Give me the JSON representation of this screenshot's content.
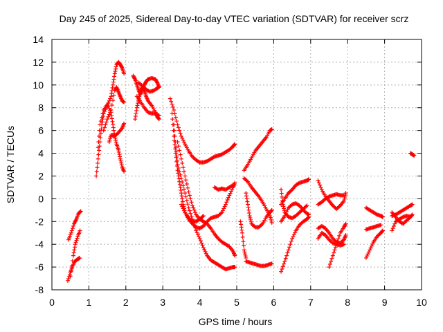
{
  "chart_data": {
    "type": "scatter",
    "title": "Day 245 of 2025, Sidereal Day-to-day VTEC variation (SDTVAR) for receiver scrz",
    "xlabel": "GPS time / hours",
    "ylabel": "SDTVAR / TECUs",
    "xlim": [
      0,
      10
    ],
    "ylim": [
      -8,
      14
    ],
    "xticks": [
      "0",
      "1",
      "2",
      "3",
      "4",
      "5",
      "6",
      "7",
      "8",
      "9",
      "10"
    ],
    "yticks": [
      "-8",
      "-6",
      "-4",
      "-2",
      "0",
      "2",
      "4",
      "6",
      "8",
      "10",
      "12",
      "14"
    ],
    "grid": true,
    "marker": "+",
    "color": "#ff0000",
    "segments": [
      [
        [
          0.43,
          -7.2
        ],
        [
          0.5,
          -6.5
        ],
        [
          0.55,
          -6.0
        ],
        [
          0.62,
          -5.5
        ],
        [
          0.7,
          -5.3
        ],
        [
          0.75,
          -5.2
        ]
      ],
      [
        [
          0.45,
          -3.6
        ],
        [
          0.52,
          -3.0
        ],
        [
          0.6,
          -2.2
        ],
        [
          0.66,
          -1.8
        ],
        [
          0.72,
          -1.3
        ],
        [
          0.78,
          -1.1
        ]
      ],
      [
        [
          0.5,
          -6.8
        ],
        [
          0.58,
          -5.0
        ],
        [
          0.63,
          -4.0
        ],
        [
          0.7,
          -3.3
        ],
        [
          0.76,
          -2.8
        ]
      ],
      [
        [
          1.2,
          2.0
        ],
        [
          1.25,
          3.5
        ],
        [
          1.3,
          5.0
        ],
        [
          1.35,
          6.5
        ],
        [
          1.4,
          7.5
        ],
        [
          1.5,
          8.2
        ],
        [
          1.6,
          9.0
        ],
        [
          1.65,
          10.0
        ],
        [
          1.7,
          11.0
        ],
        [
          1.75,
          11.8
        ],
        [
          1.8,
          12.0
        ],
        [
          1.85,
          11.8
        ],
        [
          1.9,
          11.5
        ],
        [
          1.95,
          11.0
        ]
      ],
      [
        [
          1.25,
          4.5
        ],
        [
          1.3,
          6.5
        ],
        [
          1.4,
          7.8
        ],
        [
          1.5,
          8.3
        ],
        [
          1.6,
          7.6
        ],
        [
          1.65,
          6.5
        ],
        [
          1.7,
          5.5
        ],
        [
          1.75,
          4.8
        ],
        [
          1.8,
          4.3
        ],
        [
          1.85,
          3.5
        ],
        [
          1.9,
          2.8
        ],
        [
          1.95,
          2.4
        ]
      ],
      [
        [
          1.4,
          6.0
        ],
        [
          1.5,
          7.0
        ],
        [
          1.6,
          7.8
        ],
        [
          1.7,
          9.5
        ],
        [
          1.75,
          9.8
        ],
        [
          1.8,
          9.4
        ],
        [
          1.85,
          9.0
        ],
        [
          1.9,
          8.6
        ],
        [
          1.95,
          8.5
        ]
      ],
      [
        [
          1.55,
          5.0
        ],
        [
          1.6,
          5.6
        ],
        [
          1.7,
          5.5
        ],
        [
          1.8,
          5.8
        ],
        [
          1.9,
          6.2
        ],
        [
          1.95,
          6.6
        ]
      ],
      [
        [
          2.2,
          10.8
        ],
        [
          2.25,
          10.5
        ],
        [
          2.3,
          10.0
        ],
        [
          2.35,
          9.5
        ],
        [
          2.4,
          9.2
        ],
        [
          2.45,
          9.6
        ],
        [
          2.5,
          10.0
        ],
        [
          2.55,
          10.3
        ],
        [
          2.6,
          10.5
        ],
        [
          2.7,
          10.6
        ],
        [
          2.8,
          10.5
        ],
        [
          2.85,
          10.2
        ],
        [
          2.9,
          9.8
        ]
      ],
      [
        [
          2.25,
          7.0
        ],
        [
          2.3,
          8.0
        ],
        [
          2.35,
          8.8
        ],
        [
          2.4,
          9.5
        ],
        [
          2.45,
          9.8
        ],
        [
          2.5,
          9.5
        ],
        [
          2.55,
          9.0
        ],
        [
          2.6,
          8.6
        ],
        [
          2.7,
          8.2
        ],
        [
          2.8,
          7.6
        ],
        [
          2.85,
          7.2
        ],
        [
          2.9,
          7.0
        ]
      ],
      [
        [
          2.3,
          9.0
        ],
        [
          2.4,
          8.5
        ],
        [
          2.5,
          8.0
        ],
        [
          2.6,
          7.6
        ],
        [
          2.7,
          7.5
        ],
        [
          2.8,
          7.5
        ],
        [
          2.9,
          7.3
        ]
      ],
      [
        [
          2.35,
          10.2
        ],
        [
          2.45,
          9.9
        ],
        [
          2.55,
          9.6
        ],
        [
          2.65,
          9.4
        ],
        [
          2.75,
          9.5
        ],
        [
          2.85,
          9.7
        ],
        [
          2.9,
          9.9
        ]
      ],
      [
        [
          3.2,
          8.8
        ],
        [
          3.3,
          7.8
        ],
        [
          3.4,
          6.5
        ],
        [
          3.5,
          5.5
        ],
        [
          3.6,
          4.8
        ],
        [
          3.7,
          4.2
        ],
        [
          3.8,
          3.7
        ],
        [
          3.9,
          3.4
        ],
        [
          4.0,
          3.2
        ],
        [
          4.1,
          3.2
        ],
        [
          4.2,
          3.3
        ],
        [
          4.3,
          3.5
        ],
        [
          4.4,
          3.7
        ],
        [
          4.5,
          3.8
        ],
        [
          4.6,
          3.9
        ],
        [
          4.7,
          4.1
        ],
        [
          4.8,
          4.3
        ],
        [
          4.9,
          4.6
        ],
        [
          4.95,
          4.8
        ]
      ],
      [
        [
          3.25,
          7.5
        ],
        [
          3.3,
          5.5
        ],
        [
          3.35,
          4.0
        ],
        [
          3.4,
          2.5
        ],
        [
          3.45,
          1.5
        ],
        [
          3.5,
          0.5
        ],
        [
          3.55,
          -0.5
        ],
        [
          3.6,
          -1.2
        ],
        [
          3.7,
          -1.8
        ],
        [
          3.8,
          -2.2
        ],
        [
          3.9,
          -2.5
        ],
        [
          4.0,
          -2.6
        ],
        [
          4.1,
          -2.4
        ],
        [
          4.2,
          -2.0
        ],
        [
          4.3,
          -1.7
        ],
        [
          4.4,
          -1.6
        ],
        [
          4.5,
          -1.5
        ],
        [
          4.6,
          -1.2
        ],
        [
          4.7,
          -0.5
        ],
        [
          4.8,
          0.3
        ],
        [
          4.9,
          1.0
        ],
        [
          4.95,
          1.4
        ]
      ],
      [
        [
          3.3,
          6.5
        ],
        [
          3.35,
          4.5
        ],
        [
          3.4,
          3.0
        ],
        [
          3.5,
          1.8
        ],
        [
          3.6,
          0.5
        ],
        [
          3.7,
          -0.8
        ],
        [
          3.8,
          -1.8
        ],
        [
          3.9,
          -2.8
        ],
        [
          4.0,
          -3.5
        ],
        [
          4.1,
          -4.3
        ],
        [
          4.2,
          -5.0
        ],
        [
          4.3,
          -5.4
        ],
        [
          4.4,
          -5.6
        ],
        [
          4.5,
          -5.8
        ],
        [
          4.6,
          -6.0
        ],
        [
          4.7,
          -6.2
        ],
        [
          4.8,
          -6.1
        ],
        [
          4.9,
          -6.0
        ],
        [
          4.95,
          -6.0
        ]
      ],
      [
        [
          3.4,
          5.0
        ],
        [
          3.5,
          3.5
        ],
        [
          3.6,
          2.0
        ],
        [
          3.7,
          0.6
        ],
        [
          3.8,
          -0.6
        ],
        [
          3.9,
          -1.4
        ],
        [
          4.0,
          -1.8
        ],
        [
          4.1,
          -2.0
        ],
        [
          4.2,
          -2.2
        ],
        [
          4.3,
          -2.6
        ],
        [
          4.4,
          -3.1
        ],
        [
          4.5,
          -3.5
        ],
        [
          4.6,
          -3.8
        ],
        [
          4.7,
          -4.0
        ],
        [
          4.8,
          -4.2
        ],
        [
          4.9,
          -4.6
        ],
        [
          4.95,
          -5.0
        ]
      ],
      [
        [
          3.5,
          -0.5
        ],
        [
          3.6,
          -1.2
        ],
        [
          3.7,
          -1.7
        ],
        [
          3.8,
          -2.0
        ],
        [
          3.9,
          -2.0
        ],
        [
          4.0,
          -1.8
        ],
        [
          4.1,
          -1.5
        ]
      ],
      [
        [
          4.4,
          1.0
        ],
        [
          4.5,
          0.8
        ],
        [
          4.6,
          0.9
        ],
        [
          4.7,
          0.8
        ],
        [
          4.8,
          1.0
        ],
        [
          4.9,
          1.2
        ]
      ],
      [
        [
          5.2,
          2.5
        ],
        [
          5.3,
          3.0
        ],
        [
          5.4,
          3.6
        ],
        [
          5.5,
          4.2
        ],
        [
          5.6,
          4.6
        ],
        [
          5.7,
          5.0
        ],
        [
          5.8,
          5.4
        ],
        [
          5.9,
          6.0
        ],
        [
          5.95,
          6.1
        ]
      ],
      [
        [
          5.2,
          1.8
        ],
        [
          5.3,
          1.5
        ],
        [
          5.4,
          1.0
        ],
        [
          5.5,
          0.6
        ],
        [
          5.6,
          0.2
        ],
        [
          5.7,
          -0.3
        ],
        [
          5.8,
          -0.9
        ],
        [
          5.9,
          -1.5
        ],
        [
          5.95,
          -2.1
        ]
      ],
      [
        [
          5.25,
          0.5
        ],
        [
          5.3,
          -0.5
        ],
        [
          5.35,
          -1.5
        ],
        [
          5.4,
          -2.2
        ],
        [
          5.5,
          -2.5
        ],
        [
          5.6,
          -2.5
        ],
        [
          5.7,
          -2.2
        ],
        [
          5.8,
          -1.6
        ],
        [
          5.9,
          -1.2
        ],
        [
          5.95,
          -1.0
        ]
      ],
      [
        [
          5.25,
          -5.5
        ],
        [
          5.35,
          -5.6
        ],
        [
          5.45,
          -5.7
        ],
        [
          5.55,
          -5.8
        ],
        [
          5.65,
          -5.9
        ],
        [
          5.75,
          -5.9
        ],
        [
          5.85,
          -5.8
        ],
        [
          5.95,
          -5.7
        ]
      ],
      [
        [
          5.1,
          -2.0
        ],
        [
          5.15,
          -3.0
        ],
        [
          5.2,
          -4.5
        ],
        [
          5.25,
          -5.2
        ]
      ],
      [
        [
          6.2,
          -6.4
        ],
        [
          6.3,
          -5.5
        ],
        [
          6.4,
          -4.5
        ],
        [
          6.5,
          -3.5
        ],
        [
          6.6,
          -2.8
        ],
        [
          6.7,
          -2.3
        ],
        [
          6.8,
          -2.0
        ],
        [
          6.9,
          -1.8
        ],
        [
          6.95,
          -1.6
        ]
      ],
      [
        [
          6.2,
          -0.5
        ],
        [
          6.3,
          0.0
        ],
        [
          6.4,
          0.5
        ],
        [
          6.5,
          0.8
        ],
        [
          6.6,
          1.2
        ],
        [
          6.7,
          1.4
        ],
        [
          6.8,
          1.5
        ],
        [
          6.9,
          1.6
        ],
        [
          6.95,
          1.7
        ]
      ],
      [
        [
          6.2,
          -2.0
        ],
        [
          6.3,
          -1.5
        ],
        [
          6.4,
          -0.8
        ],
        [
          6.5,
          -0.5
        ],
        [
          6.6,
          -0.4
        ],
        [
          6.7,
          -0.6
        ],
        [
          6.8,
          -1.0
        ],
        [
          6.9,
          -1.3
        ],
        [
          6.95,
          -1.4
        ]
      ],
      [
        [
          6.2,
          0.8
        ],
        [
          6.25,
          -0.5
        ],
        [
          6.3,
          -1.2
        ],
        [
          6.4,
          -1.6
        ],
        [
          6.5,
          -1.7
        ],
        [
          6.6,
          -1.5
        ],
        [
          6.7,
          -1.2
        ],
        [
          6.8,
          -0.9
        ],
        [
          6.9,
          -0.6
        ]
      ],
      [
        [
          7.2,
          1.6
        ],
        [
          7.3,
          0.8
        ],
        [
          7.4,
          0.2
        ],
        [
          7.5,
          -0.2
        ],
        [
          7.6,
          -0.6
        ],
        [
          7.7,
          -0.9
        ],
        [
          7.8,
          -0.6
        ],
        [
          7.9,
          -0.2
        ],
        [
          7.95,
          0.5
        ]
      ],
      [
        [
          7.2,
          -0.5
        ],
        [
          7.3,
          -0.3
        ],
        [
          7.4,
          0.0
        ],
        [
          7.5,
          0.2
        ],
        [
          7.6,
          0.3
        ],
        [
          7.7,
          0.4
        ],
        [
          7.8,
          0.3
        ],
        [
          7.9,
          0.3
        ]
      ],
      [
        [
          7.2,
          -2.6
        ],
        [
          7.3,
          -2.4
        ],
        [
          7.4,
          -2.6
        ],
        [
          7.5,
          -3.0
        ],
        [
          7.6,
          -3.5
        ],
        [
          7.7,
          -3.8
        ],
        [
          7.8,
          -3.9
        ],
        [
          7.9,
          -3.6
        ],
        [
          7.95,
          -3.2
        ]
      ],
      [
        [
          7.2,
          -3.5
        ],
        [
          7.3,
          -3.0
        ],
        [
          7.4,
          -3.2
        ],
        [
          7.5,
          -3.6
        ],
        [
          7.6,
          -3.9
        ],
        [
          7.7,
          -4.0
        ],
        [
          7.8,
          -4.1
        ],
        [
          7.9,
          -4.0
        ]
      ],
      [
        [
          7.5,
          -6.0
        ],
        [
          7.6,
          -5.0
        ],
        [
          7.7,
          -4.0
        ],
        [
          7.8,
          -3.0
        ],
        [
          7.9,
          -2.5
        ],
        [
          7.95,
          -2.2
        ]
      ],
      [
        [
          8.5,
          -5.2
        ],
        [
          8.6,
          -4.5
        ],
        [
          8.7,
          -3.8
        ],
        [
          8.8,
          -3.3
        ],
        [
          8.9,
          -3.0
        ],
        [
          8.95,
          -2.8
        ]
      ],
      [
        [
          8.5,
          -2.7
        ],
        [
          8.6,
          -2.6
        ],
        [
          8.7,
          -2.5
        ],
        [
          8.8,
          -2.4
        ],
        [
          8.9,
          -2.3
        ]
      ],
      [
        [
          8.5,
          -0.8
        ],
        [
          8.6,
          -1.0
        ],
        [
          8.7,
          -1.2
        ],
        [
          8.8,
          -1.4
        ],
        [
          8.9,
          -1.5
        ],
        [
          8.95,
          -1.6
        ]
      ],
      [
        [
          9.2,
          -2.8
        ],
        [
          9.3,
          -2.0
        ],
        [
          9.4,
          -1.8
        ],
        [
          9.5,
          -1.6
        ],
        [
          9.6,
          -1.5
        ],
        [
          9.7,
          -1.6
        ]
      ],
      [
        [
          9.2,
          -1.5
        ],
        [
          9.3,
          -1.4
        ],
        [
          9.4,
          -1.2
        ],
        [
          9.5,
          -1.0
        ],
        [
          9.6,
          -0.8
        ],
        [
          9.7,
          -0.6
        ],
        [
          9.75,
          -0.5
        ]
      ],
      [
        [
          9.2,
          -1.2
        ],
        [
          9.3,
          -1.6
        ],
        [
          9.4,
          -2.0
        ],
        [
          9.5,
          -2.2
        ],
        [
          9.6,
          -1.9
        ],
        [
          9.7,
          -1.6
        ],
        [
          9.75,
          -1.4
        ]
      ],
      [
        [
          9.7,
          4.0
        ],
        [
          9.75,
          3.9
        ],
        [
          9.8,
          3.8
        ]
      ]
    ]
  }
}
